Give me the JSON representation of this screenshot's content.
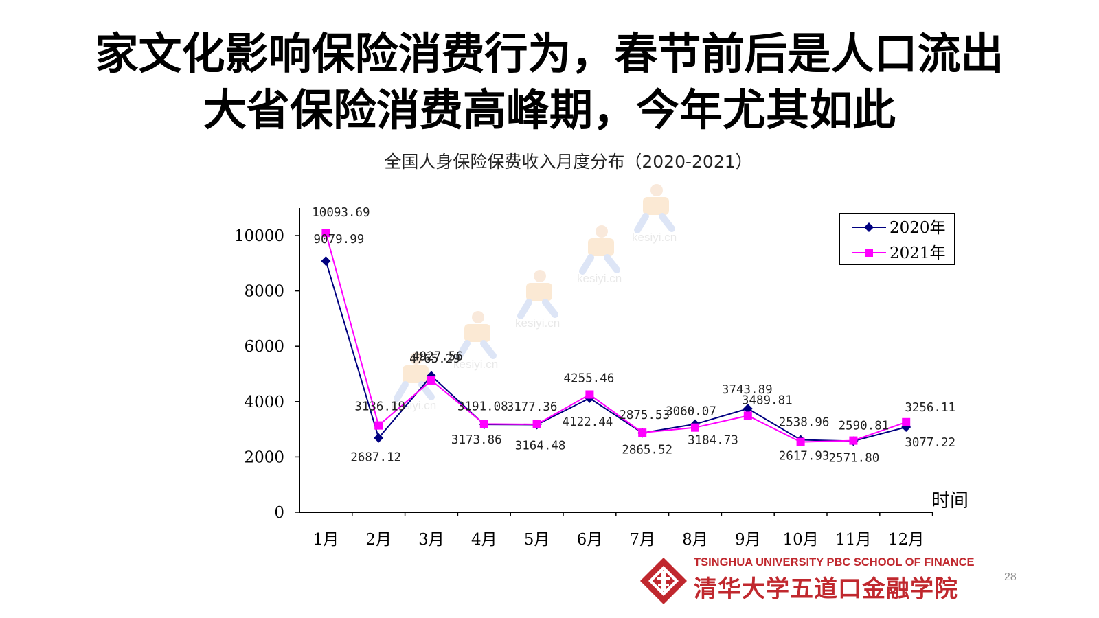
{
  "slide": {
    "title_line1": "家文化影响保险消费行为，春节前后是人口流出",
    "title_line2": "大省保险消费高峰期，今年尤其如此",
    "page_number": "28"
  },
  "logo": {
    "english": "TSINGHUA UNIVERSITY PBC SCHOOL OF FINANCE",
    "chinese": "清华大学五道口金融学院"
  },
  "watermark": {
    "text": "kesiyi.cn"
  },
  "colors": {
    "series_2020": "#000080",
    "series_2021": "#ff00ff",
    "brand_red": "#c0282e"
  },
  "chart_data": {
    "type": "line",
    "title": "全国人身保险保费收入月度分布（2020-2021）",
    "xlabel": "时间",
    "ylabel": "",
    "categories": [
      "1月",
      "2月",
      "3月",
      "4月",
      "5月",
      "6月",
      "7月",
      "8月",
      "9月",
      "10月",
      "11月",
      "12月"
    ],
    "ylim": [
      0,
      10000
    ],
    "yticks": [
      "0",
      "2000",
      "4000",
      "6000",
      "8000",
      "10000"
    ],
    "legend_position": "top-right",
    "grid": false,
    "series": [
      {
        "name": "2020年",
        "marker": "diamond",
        "values": [
          9079.99,
          2687.12,
          4927.56,
          3173.86,
          3164.48,
          4122.44,
          2865.52,
          3184.73,
          3743.89,
          2617.93,
          2571.8,
          3077.22
        ],
        "labels": [
          "9079.99",
          "2687.12",
          "4927.56",
          "3173.86",
          "3164.48",
          "4122.44",
          "2865.52",
          "3184.73",
          "3743.89",
          "2617.93",
          "2571.80",
          "3077.22"
        ]
      },
      {
        "name": "2021年",
        "marker": "square",
        "values": [
          10093.69,
          3136.19,
          4765.29,
          3191.08,
          3177.36,
          4255.46,
          2875.53,
          3060.07,
          3489.81,
          2538.96,
          2590.81,
          3256.11
        ],
        "labels": [
          "10093.69",
          "3136.19",
          "4765.29",
          "3191.08",
          "3177.36",
          "4255.46",
          "2875.53",
          "3060.07",
          "3489.81",
          "2538.96",
          "2590.81",
          "3256.11"
        ]
      }
    ]
  }
}
